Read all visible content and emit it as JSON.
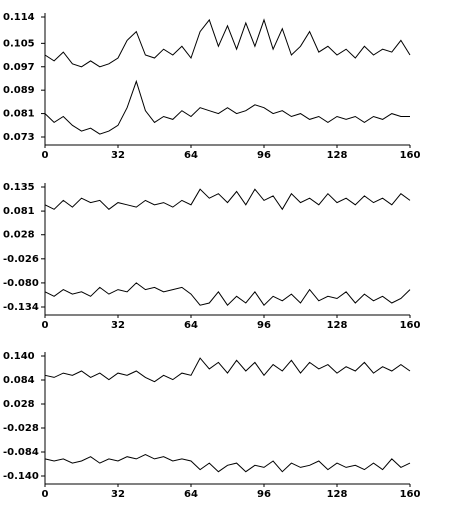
{
  "chart_data": [
    {
      "type": "line",
      "x": [
        0,
        4,
        8,
        12,
        16,
        20,
        24,
        28,
        32,
        36,
        40,
        44,
        48,
        52,
        56,
        60,
        64,
        68,
        72,
        76,
        80,
        84,
        88,
        92,
        96,
        100,
        104,
        108,
        112,
        116,
        120,
        124,
        128,
        132,
        136,
        140,
        144,
        148,
        152,
        156,
        160
      ],
      "series": [
        {
          "color": "#000000",
          "values": [
            0.101,
            0.099,
            0.102,
            0.098,
            0.097,
            0.099,
            0.097,
            0.098,
            0.1,
            0.106,
            0.109,
            0.101,
            0.1,
            0.103,
            0.101,
            0.104,
            0.1,
            0.109,
            0.113,
            0.104,
            0.111,
            0.103,
            0.112,
            0.104,
            0.113,
            0.103,
            0.11,
            0.101,
            0.104,
            0.109,
            0.102,
            0.104,
            0.101,
            0.103,
            0.1,
            0.104,
            0.101,
            0.103,
            0.102,
            0.106,
            0.101
          ]
        },
        {
          "color": "#000000",
          "values": [
            0.081,
            0.078,
            0.08,
            0.077,
            0.075,
            0.076,
            0.074,
            0.075,
            0.077,
            0.083,
            0.092,
            0.082,
            0.078,
            0.08,
            0.079,
            0.082,
            0.08,
            0.083,
            0.082,
            0.081,
            0.083,
            0.081,
            0.082,
            0.084,
            0.083,
            0.081,
            0.082,
            0.08,
            0.081,
            0.079,
            0.08,
            0.078,
            0.08,
            0.079,
            0.08,
            0.078,
            0.08,
            0.079,
            0.081,
            0.08,
            0.08
          ]
        }
      ],
      "xlim": [
        0,
        160
      ],
      "xticks": [
        0,
        32,
        64,
        96,
        128,
        160
      ],
      "ylim": [
        0.073,
        0.114
      ],
      "yticks": [
        0.073,
        0.081,
        0.089,
        0.097,
        0.105,
        0.114
      ]
    },
    {
      "type": "line",
      "x": [
        0,
        4,
        8,
        12,
        16,
        20,
        24,
        28,
        32,
        36,
        40,
        44,
        48,
        52,
        56,
        60,
        64,
        68,
        72,
        76,
        80,
        84,
        88,
        92,
        96,
        100,
        104,
        108,
        112,
        116,
        120,
        124,
        128,
        132,
        136,
        140,
        144,
        148,
        152,
        156,
        160
      ],
      "series": [
        {
          "color": "#000000",
          "values": [
            0.095,
            0.085,
            0.105,
            0.09,
            0.11,
            0.1,
            0.105,
            0.085,
            0.1,
            0.095,
            0.09,
            0.105,
            0.095,
            0.1,
            0.09,
            0.105,
            0.095,
            0.13,
            0.11,
            0.12,
            0.1,
            0.125,
            0.095,
            0.13,
            0.105,
            0.115,
            0.085,
            0.12,
            0.1,
            0.11,
            0.095,
            0.12,
            0.1,
            0.11,
            0.095,
            0.115,
            0.1,
            0.11,
            0.095,
            0.12,
            0.105
          ]
        },
        {
          "color": "#000000",
          "values": [
            -0.1,
            -0.11,
            -0.095,
            -0.105,
            -0.1,
            -0.11,
            -0.09,
            -0.105,
            -0.095,
            -0.1,
            -0.08,
            -0.095,
            -0.09,
            -0.1,
            -0.095,
            -0.09,
            -0.105,
            -0.13,
            -0.125,
            -0.1,
            -0.13,
            -0.11,
            -0.125,
            -0.1,
            -0.13,
            -0.11,
            -0.12,
            -0.105,
            -0.125,
            -0.095,
            -0.12,
            -0.11,
            -0.115,
            -0.1,
            -0.125,
            -0.105,
            -0.12,
            -0.11,
            -0.125,
            -0.115,
            -0.095
          ]
        }
      ],
      "xlim": [
        0,
        160
      ],
      "xticks": [
        0,
        32,
        64,
        96,
        128,
        160
      ],
      "ylim": [
        -0.134,
        0.135
      ],
      "yticks": [
        -0.134,
        {
          "value": -0.08,
          "label": "-0.080"
        },
        -0.026,
        0.028,
        0.081,
        0.135
      ]
    },
    {
      "type": "line",
      "x": [
        0,
        4,
        8,
        12,
        16,
        20,
        24,
        28,
        32,
        36,
        40,
        44,
        48,
        52,
        56,
        60,
        64,
        68,
        72,
        76,
        80,
        84,
        88,
        92,
        96,
        100,
        104,
        108,
        112,
        116,
        120,
        124,
        128,
        132,
        136,
        140,
        144,
        148,
        152,
        156,
        160
      ],
      "series": [
        {
          "color": "#000000",
          "values": [
            0.095,
            0.09,
            0.1,
            0.095,
            0.105,
            0.09,
            0.1,
            0.085,
            0.1,
            0.095,
            0.105,
            0.09,
            0.08,
            0.095,
            0.085,
            0.1,
            0.095,
            0.135,
            0.11,
            0.125,
            0.1,
            0.13,
            0.105,
            0.125,
            0.095,
            0.12,
            0.105,
            0.13,
            0.1,
            0.125,
            0.11,
            0.12,
            0.1,
            0.115,
            0.105,
            0.125,
            0.1,
            0.115,
            0.105,
            0.12,
            0.105
          ]
        },
        {
          "color": "#000000",
          "values": [
            -0.1,
            -0.105,
            -0.1,
            -0.11,
            -0.105,
            -0.095,
            -0.11,
            -0.1,
            -0.105,
            -0.095,
            -0.1,
            -0.09,
            -0.1,
            -0.095,
            -0.105,
            -0.1,
            -0.105,
            -0.125,
            -0.11,
            -0.13,
            -0.115,
            -0.11,
            -0.13,
            -0.115,
            -0.12,
            -0.105,
            -0.13,
            -0.11,
            -0.12,
            -0.115,
            -0.105,
            -0.125,
            -0.11,
            -0.12,
            -0.115,
            -0.125,
            -0.11,
            -0.125,
            -0.1,
            -0.12,
            -0.11
          ]
        }
      ],
      "xlim": [
        0,
        160
      ],
      "xticks": [
        0,
        32,
        64,
        96,
        128,
        160
      ],
      "ylim": [
        -0.14,
        0.14
      ],
      "yticks": [
        {
          "value": -0.14,
          "label": "-0.140"
        },
        -0.084,
        -0.028,
        0.028,
        0.084,
        {
          "value": 0.14,
          "label": "0.140"
        }
      ]
    }
  ]
}
